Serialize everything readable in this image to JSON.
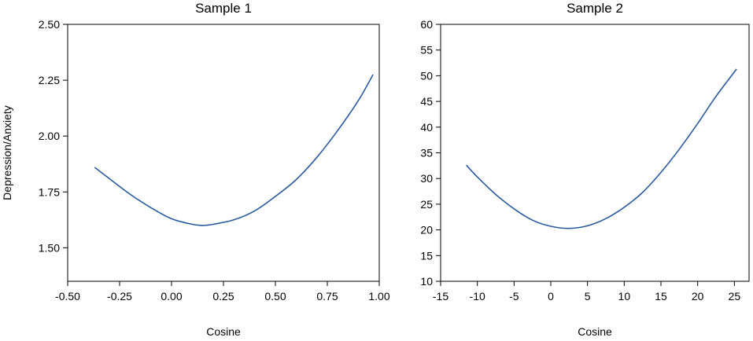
{
  "chart_data": [
    {
      "type": "line",
      "title": "Sample 1",
      "xlabel": "Cosine",
      "ylabel": "Depression/Anxiety",
      "xlim": [
        -0.5,
        1.0
      ],
      "ylim": [
        1.35,
        2.5
      ],
      "xticks": [
        -0.5,
        -0.25,
        0.0,
        0.25,
        0.5,
        0.75,
        1.0
      ],
      "xtick_labels": [
        "-0.50",
        "-0.25",
        "0.00",
        "0.25",
        "0.50",
        "0.75",
        "1.00"
      ],
      "yticks": [
        1.5,
        1.75,
        2.0,
        2.25,
        2.5
      ],
      "ytick_labels": [
        "1.50",
        "1.75",
        "2.00",
        "2.25",
        "2.50"
      ],
      "grid": false,
      "line_color": "#2a5a9e",
      "series": [
        {
          "x": [
            -0.37,
            -0.3,
            -0.2,
            -0.1,
            0.0,
            0.1,
            0.15,
            0.2,
            0.3,
            0.4,
            0.5,
            0.6,
            0.7,
            0.8,
            0.9,
            0.97
          ],
          "values": [
            1.86,
            1.81,
            1.74,
            1.68,
            1.63,
            1.605,
            1.6,
            1.605,
            1.625,
            1.665,
            1.73,
            1.805,
            1.905,
            2.025,
            2.16,
            2.275
          ]
        }
      ]
    },
    {
      "type": "line",
      "title": "Sample 2",
      "xlabel": "Cosine",
      "ylabel": "",
      "xlim": [
        -15,
        27
      ],
      "ylim": [
        10,
        60
      ],
      "xticks": [
        -15,
        -10,
        -5,
        0,
        5,
        10,
        15,
        20,
        25
      ],
      "xtick_labels": [
        "-15",
        "-10",
        "-5",
        "0",
        "5",
        "10",
        "15",
        "20",
        "25"
      ],
      "yticks": [
        10,
        15,
        20,
        25,
        30,
        35,
        40,
        45,
        50,
        55,
        60
      ],
      "ytick_labels": [
        "10",
        "15",
        "20",
        "25",
        "30",
        "35",
        "40",
        "45",
        "50",
        "55",
        "60"
      ],
      "grid": false,
      "line_color": "#2a5a9e",
      "series": [
        {
          "x": [
            -11.5,
            -10,
            -7.5,
            -5,
            -2.5,
            0,
            2.5,
            5,
            7.5,
            10,
            12.5,
            15,
            17.5,
            20,
            22.5,
            25.3
          ],
          "values": [
            32.6,
            30.3,
            26.9,
            24.1,
            21.9,
            20.7,
            20.3,
            20.8,
            22.2,
            24.4,
            27.3,
            31.2,
            35.7,
            40.7,
            46.0,
            51.3
          ]
        }
      ]
    }
  ]
}
